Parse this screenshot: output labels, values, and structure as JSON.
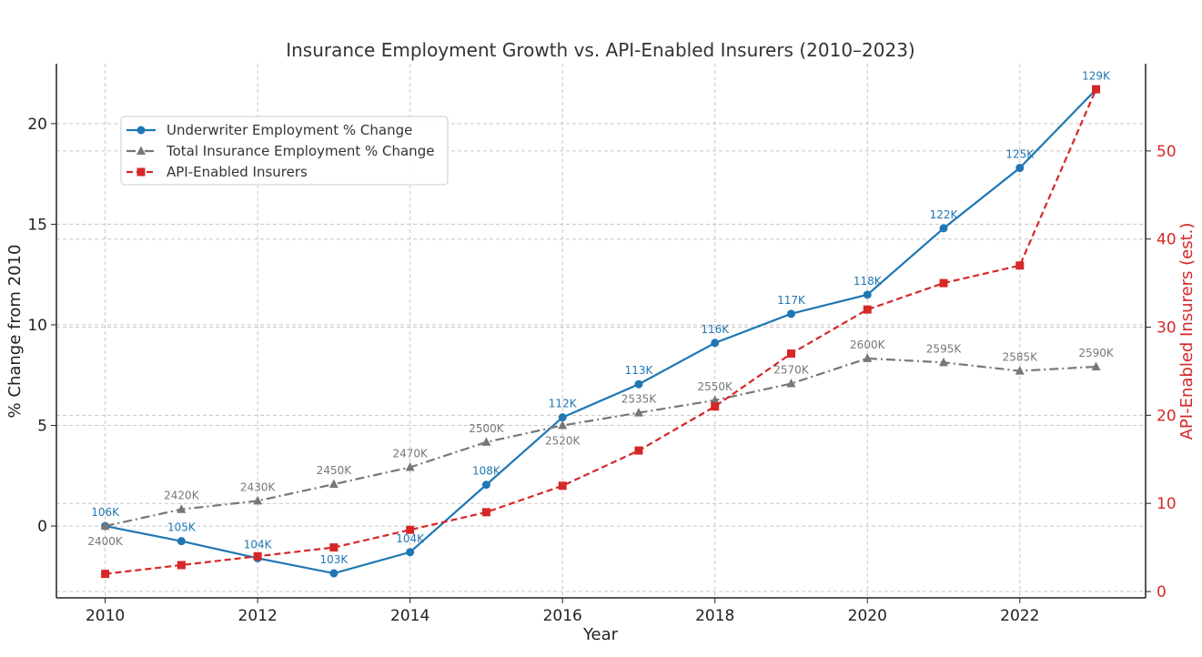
{
  "chart_data": {
    "type": "line",
    "title": "Insurance Employment Growth vs. API-Enabled Insurers (2010–2023)",
    "xlabel": "Year",
    "ylabel": "% Change from 2010",
    "ylabel_right": "API-Enabled Insurers (est.)",
    "x": [
      2010,
      2011,
      2012,
      2013,
      2014,
      2015,
      2016,
      2017,
      2018,
      2019,
      2020,
      2021,
      2022,
      2023
    ],
    "xlim": [
      2009.36,
      2023.65
    ],
    "ylim": [
      -3.57,
      22.98
    ],
    "ylim_right": [
      -0.72,
      59.9
    ],
    "xticks": [
      2010,
      2012,
      2014,
      2016,
      2018,
      2020,
      2022
    ],
    "yticks": [
      0,
      5,
      10,
      15,
      20
    ],
    "yticks_right": [
      0,
      10,
      20,
      30,
      40,
      50
    ],
    "grid": true,
    "legend_position": "upper-left",
    "series": [
      {
        "name": "Underwriter Employment % Change",
        "axis": "left",
        "color": "#1f77b4",
        "marker": "circle",
        "style": "solid",
        "values": [
          0,
          -0.75,
          -1.6,
          -2.35,
          -1.3,
          2.05,
          5.4,
          7.05,
          9.1,
          10.55,
          11.5,
          14.8,
          17.8,
          21.7
        ],
        "labels": [
          "106K",
          "105K",
          "104K",
          "103K",
          "104K",
          "108K",
          "112K",
          "113K",
          "116K",
          "117K",
          "118K",
          "122K",
          "125K",
          "129K"
        ]
      },
      {
        "name": "Total Insurance Employment % Change",
        "axis": "left",
        "color": "#777777",
        "marker": "triangle",
        "style": "dashdot",
        "values": [
          0,
          0.83,
          1.25,
          2.08,
          2.92,
          4.17,
          5.0,
          5.63,
          6.25,
          7.08,
          8.33,
          8.13,
          7.71,
          7.92
        ],
        "labels": [
          "2400K",
          "2420K",
          "2430K",
          "2450K",
          "2470K",
          "2500K",
          "2520K",
          "2535K",
          "2550K",
          "2570K",
          "2600K",
          "2595K",
          "2585K",
          "2590K"
        ]
      },
      {
        "name": "API-Enabled Insurers",
        "axis": "right",
        "color": "#d62728",
        "marker": "square",
        "style": "dashed",
        "values": [
          2,
          3,
          4,
          5,
          7,
          9,
          12,
          16,
          21,
          27,
          32,
          35,
          37,
          57
        ]
      }
    ]
  }
}
